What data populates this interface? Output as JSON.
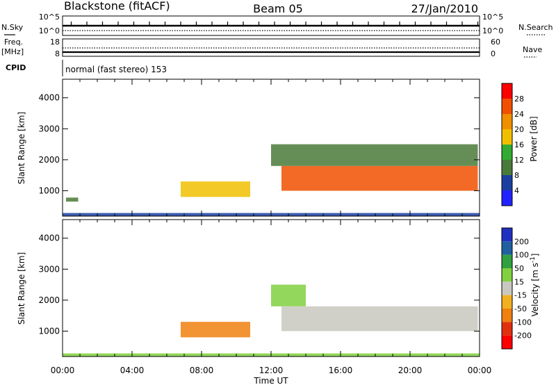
{
  "header": {
    "station": "Blackstone (fitACF)",
    "beam": "Beam 05",
    "date": "27/Jan/2010"
  },
  "noise_panel": {
    "left_label": "N.Sky",
    "left_ticks": [
      "10^5",
      "10^0"
    ],
    "right_label": "N.Search",
    "right_ticks": [
      "10^5",
      "10^0"
    ]
  },
  "freq_panel": {
    "left_label": "Freq.",
    "left_unit": "[MHz]",
    "left_ticks": [
      "18",
      "8"
    ],
    "right_label": "Nave",
    "right_ticks": [
      "60",
      "0"
    ]
  },
  "cpid": {
    "label": "CPID",
    "value": "normal (fast stereo) 153"
  },
  "colors": {
    "power": [
      "#2222ff",
      "#1a3fa0",
      "#4a7a3a",
      "#33aa33",
      "#f0c000",
      "#f09000",
      "#f05000",
      "#ff0000"
    ],
    "velocity": [
      "#2030c0",
      "#2060a0",
      "#30a040",
      "#80d040",
      "#c8c8c0",
      "#f0b020",
      "#f08010",
      "#e03010",
      "#ff0000"
    ]
  },
  "chart_data": [
    {
      "type": "heatmap",
      "name": "power",
      "ylabel": "Slant Range [km]",
      "xlabel": "",
      "x_ticks": [
        "00:00",
        "04:00",
        "08:00",
        "12:00",
        "16:00",
        "20:00",
        "00:00"
      ],
      "y_ticks": [
        1000,
        2000,
        3000,
        4000
      ],
      "ylim": [
        180,
        4600
      ],
      "xlim_hours": [
        0,
        24
      ],
      "colorbar": {
        "label": "Power [dB]",
        "ticks": [
          4,
          8,
          12,
          16,
          20,
          24,
          28
        ],
        "range": [
          0,
          32
        ]
      },
      "features": [
        {
          "t0": 0.2,
          "t1": 0.9,
          "r0": 650,
          "r1": 780,
          "value": 8
        },
        {
          "t0": 6.8,
          "t1": 10.8,
          "r0": 800,
          "r1": 1300,
          "value": 18
        },
        {
          "t0": 12.6,
          "t1": 23.9,
          "r0": 1000,
          "r1": 1800,
          "value": 24
        },
        {
          "t0": 12.0,
          "t1": 23.9,
          "r0": 1800,
          "r1": 2500,
          "value": 8
        },
        {
          "t0": 0.0,
          "t1": 24.0,
          "r0": 180,
          "r1": 280,
          "value": 6
        }
      ]
    },
    {
      "type": "heatmap",
      "name": "velocity",
      "ylabel": "Slant Range [km]",
      "xlabel": "Time UT",
      "x_ticks": [
        "00:00",
        "04:00",
        "08:00",
        "12:00",
        "16:00",
        "20:00",
        "00:00"
      ],
      "y_ticks": [
        1000,
        2000,
        3000,
        4000
      ],
      "ylim": [
        180,
        4600
      ],
      "xlim_hours": [
        0,
        24
      ],
      "colorbar": {
        "label": "Velocity [m s^-1]",
        "ticks": [
          "200",
          "100",
          "50",
          "15",
          "-15",
          "-50",
          "-100",
          "-200"
        ],
        "range": [
          -250,
          250
        ]
      },
      "features": [
        {
          "t0": 6.8,
          "t1": 10.8,
          "r0": 800,
          "r1": 1300,
          "value": -50
        },
        {
          "t0": 12.6,
          "t1": 23.9,
          "r0": 1000,
          "r1": 1800,
          "value": 0
        },
        {
          "t0": 12.0,
          "t1": 14.0,
          "r0": 1800,
          "r1": 2500,
          "value": 20
        },
        {
          "t0": 0.0,
          "t1": 24.0,
          "r0": 180,
          "r1": 280,
          "value": 30
        }
      ]
    }
  ]
}
